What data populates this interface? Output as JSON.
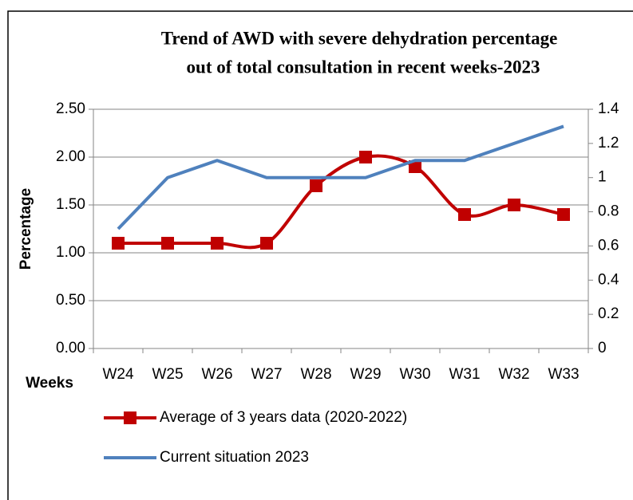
{
  "chart_data": {
    "type": "line",
    "title": [
      "Trend of AWD with severe dehydration percentage",
      "out of total consultation in recent weeks-2023"
    ],
    "ylabel": "Percentage",
    "xlabel": "Weeks",
    "categories": [
      "W24",
      "W25",
      "W26",
      "W27",
      "W28",
      "W29",
      "W30",
      "W31",
      "W32",
      "W33"
    ],
    "series": [
      {
        "name": "Average of 3 years data (2020-2022)",
        "color": "#c00000",
        "marker": "square",
        "smooth": true,
        "values": [
          1.1,
          1.1,
          1.1,
          1.1,
          1.7,
          2.0,
          1.9,
          1.4,
          1.5,
          1.4
        ]
      },
      {
        "name": "Current situation 2023",
        "color": "#4f81bd",
        "axis": "y2",
        "values": [
          0.7,
          1.0,
          1.1,
          1.0,
          1.0,
          1.0,
          1.1,
          1.1,
          1.2,
          1.3
        ]
      }
    ],
    "ylim": [
      0,
      2.5
    ],
    "yticks": [
      {
        "value": 0,
        "label": "0.00"
      },
      {
        "value": 0.5,
        "label": "0.50"
      },
      {
        "value": 1,
        "label": "1.00"
      },
      {
        "value": 1.5,
        "label": "1.50"
      },
      {
        "value": 2,
        "label": "2.00"
      },
      {
        "value": 2.5,
        "label": "2.50"
      }
    ],
    "y2lim": [
      0,
      1.4
    ],
    "y2ticks": [
      0,
      0.2,
      0.4,
      0.6,
      0.8,
      1,
      1.2,
      1.4
    ],
    "grid": true,
    "legend": "bottom"
  }
}
